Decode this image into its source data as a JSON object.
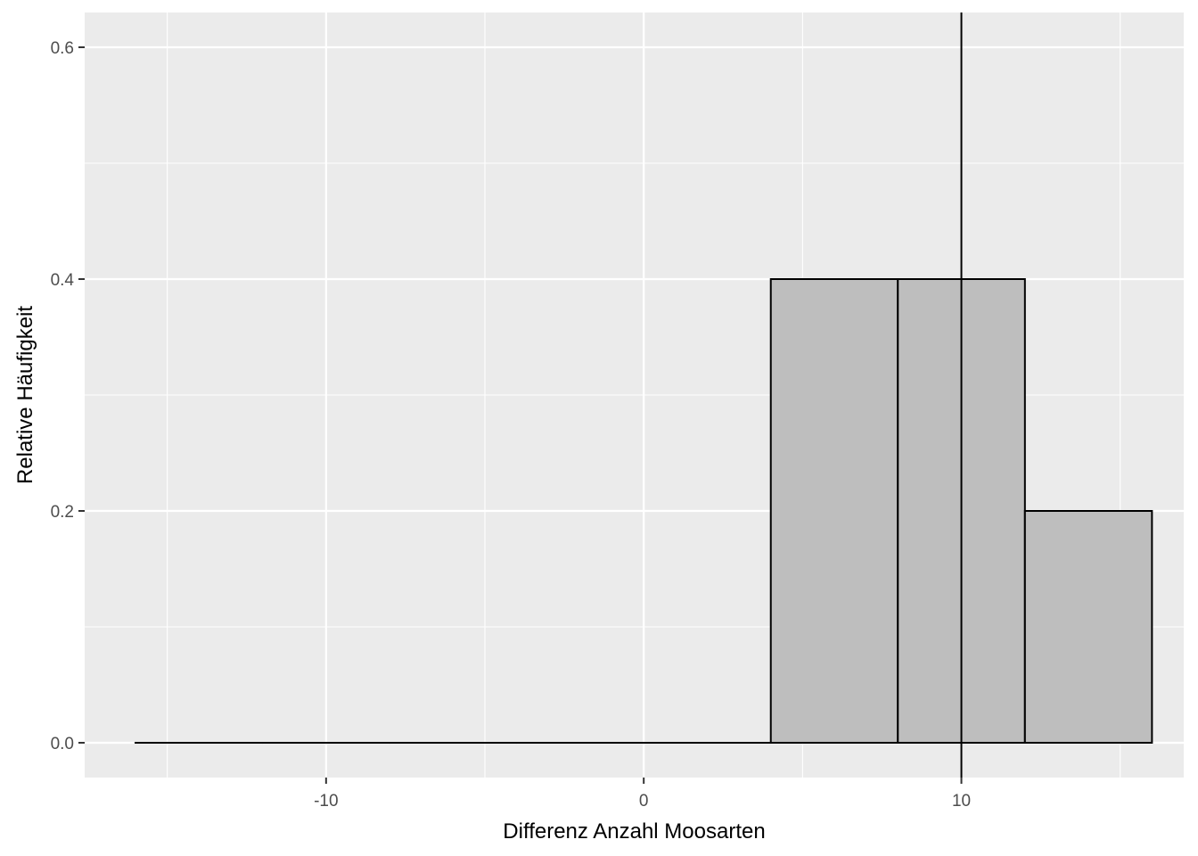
{
  "chart_data": {
    "type": "bar",
    "subtype": "histogram",
    "title": "",
    "xlabel": "Differenz Anzahl Moosarten",
    "ylabel": "Relative Häufigkeit",
    "xlim": [
      -17.6,
      17
    ],
    "ylim": [
      -0.03,
      0.63
    ],
    "x_major_ticks": [
      -10,
      0,
      10
    ],
    "x_minor_ticks": [
      -15,
      -5,
      5,
      15
    ],
    "y_major_ticks": [
      0.0,
      0.2,
      0.4,
      0.6
    ],
    "y_minor_ticks": [
      0.1,
      0.3,
      0.5
    ],
    "x_tick_labels": [
      "-10",
      "0",
      "10"
    ],
    "y_tick_labels": [
      "0.0",
      "0.2",
      "0.4",
      "0.6"
    ],
    "bin_width": 4,
    "bins": [
      {
        "x0": -16,
        "x1": -12,
        "value": 0
      },
      {
        "x0": -12,
        "x1": -8,
        "value": 0
      },
      {
        "x0": -8,
        "x1": -4,
        "value": 0
      },
      {
        "x0": -4,
        "x1": 0,
        "value": 0
      },
      {
        "x0": 0,
        "x1": 4,
        "value": 0
      },
      {
        "x0": 4,
        "x1": 8,
        "value": 0.4
      },
      {
        "x0": 8,
        "x1": 12,
        "value": 0.4
      },
      {
        "x0": 12,
        "x1": 16,
        "value": 0.2
      }
    ],
    "vline_x": 10,
    "grid": true,
    "legend": "none",
    "colors": {
      "panel_background": "#ebebeb",
      "grid": "#ffffff",
      "bar_fill": "#bebebe",
      "bar_outline": "#000000",
      "vline": "#000000"
    }
  }
}
